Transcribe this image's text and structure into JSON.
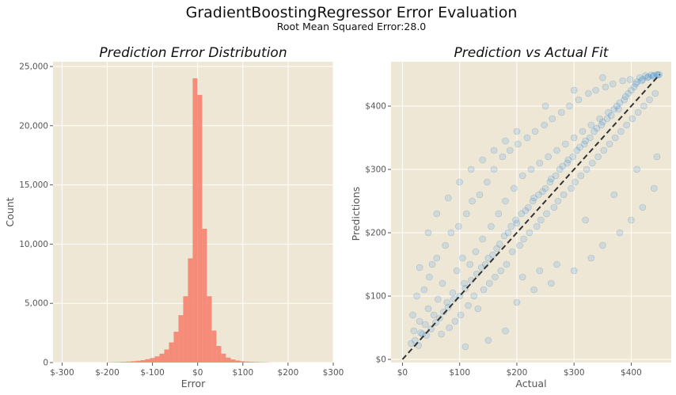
{
  "figure": {
    "title": "GradientBoostingRegressor Error Evaluation",
    "subtitle": "Root Mean Squared Error:28.0"
  },
  "colors": {
    "background": "#EFE7D5",
    "grid": "#FFFFFF",
    "histogram": "#F4826F",
    "scatter": "#2A86D8",
    "diagonal": "#333333"
  },
  "chart_data": [
    {
      "type": "bar",
      "title": "Prediction Error Distribution",
      "xlabel": "Error",
      "ylabel": "Count",
      "xlim": [
        -320,
        300
      ],
      "ylim": [
        0,
        25400
      ],
      "grid": true,
      "xticks": [
        -300,
        -200,
        -100,
        0,
        100,
        200,
        300
      ],
      "xtick_labels": [
        "$-300",
        "$-200",
        "$-100",
        "$0",
        "$100",
        "$200",
        "$300"
      ],
      "yticks": [
        0,
        5000,
        10000,
        15000,
        20000,
        25000
      ],
      "ytick_labels": [
        "0",
        "5,000",
        "10,000",
        "15,000",
        "20,000",
        "25,000"
      ],
      "bin_width": 10.5,
      "bin_starts": [
        -200,
        -189.5,
        -179,
        -168.5,
        -158,
        -147.5,
        -137,
        -126.5,
        -116,
        -105.5,
        -95,
        -84.5,
        -74,
        -63.5,
        -53,
        -42.5,
        -32,
        -21.5,
        -11,
        -0.5,
        10,
        20.5,
        31,
        41.5,
        52,
        62.5,
        73,
        83.5,
        94,
        104.5,
        115,
        125.5,
        136,
        146.5
      ],
      "values": [
        20,
        30,
        40,
        60,
        80,
        110,
        150,
        200,
        280,
        380,
        520,
        750,
        1100,
        1700,
        2600,
        4000,
        5600,
        8800,
        24000,
        22600,
        11300,
        5600,
        2700,
        1400,
        750,
        420,
        260,
        170,
        110,
        80,
        60,
        40,
        30,
        20
      ]
    },
    {
      "type": "scatter",
      "title": "Prediction vs Actual Fit",
      "xlabel": "Actual",
      "ylabel": "Predictions",
      "xlim": [
        -20,
        470
      ],
      "ylim": [
        -5,
        470
      ],
      "grid": true,
      "xticks": [
        0,
        100,
        200,
        300,
        400
      ],
      "xtick_labels": [
        "$0",
        "$100",
        "$200",
        "$300",
        "$400"
      ],
      "yticks": [
        0,
        100,
        200,
        300,
        400
      ],
      "ytick_labels": [
        "$0",
        "$100",
        "$200",
        "$300",
        "$400"
      ],
      "reference_line": {
        "style": "dashed",
        "x": [
          0,
          450
        ],
        "y": [
          0,
          450
        ]
      },
      "point_alpha": 0.15,
      "points": [
        [
          15,
          25
        ],
        [
          18,
          70
        ],
        [
          20,
          45
        ],
        [
          22,
          30
        ],
        [
          25,
          100
        ],
        [
          28,
          22
        ],
        [
          30,
          60
        ],
        [
          32,
          42
        ],
        [
          35,
          40
        ],
        [
          38,
          110
        ],
        [
          40,
          55
        ],
        [
          42,
          38
        ],
        [
          45,
          80
        ],
        [
          47,
          130
        ],
        [
          50,
          48
        ],
        [
          52,
          150
        ],
        [
          55,
          70
        ],
        [
          58,
          58
        ],
        [
          60,
          160
        ],
        [
          62,
          95
        ],
        [
          65,
          65
        ],
        [
          68,
          40
        ],
        [
          70,
          120
        ],
        [
          72,
          75
        ],
        [
          75,
          180
        ],
        [
          78,
          90
        ],
        [
          80,
          82
        ],
        [
          82,
          50
        ],
        [
          85,
          200
        ],
        [
          88,
          105
        ],
        [
          90,
          95
        ],
        [
          92,
          60
        ],
        [
          95,
          140
        ],
        [
          98,
          210
        ],
        [
          100,
          100
        ],
        [
          102,
          70
        ],
        [
          105,
          160
        ],
        [
          108,
          120
        ],
        [
          110,
          112
        ],
        [
          112,
          230
        ],
        [
          115,
          85
        ],
        [
          118,
          150
        ],
        [
          120,
          125
        ],
        [
          122,
          250
        ],
        [
          125,
          100
        ],
        [
          128,
          170
        ],
        [
          130,
          135
        ],
        [
          132,
          80
        ],
        [
          135,
          260
        ],
        [
          138,
          145
        ],
        [
          140,
          190
        ],
        [
          142,
          110
        ],
        [
          145,
          150
        ],
        [
          148,
          280
        ],
        [
          150,
          160
        ],
        [
          152,
          120
        ],
        [
          155,
          210
        ],
        [
          158,
          165
        ],
        [
          160,
          300
        ],
        [
          162,
          130
        ],
        [
          165,
          175
        ],
        [
          168,
          230
        ],
        [
          170,
          182
        ],
        [
          172,
          140
        ],
        [
          175,
          320
        ],
        [
          178,
          195
        ],
        [
          180,
          250
        ],
        [
          182,
          150
        ],
        [
          185,
          200
        ],
        [
          188,
          330
        ],
        [
          190,
          210
        ],
        [
          192,
          170
        ],
        [
          195,
          270
        ],
        [
          198,
          220
        ],
        [
          200,
          215
        ],
        [
          202,
          340
        ],
        [
          205,
          180
        ],
        [
          208,
          230
        ],
        [
          210,
          290
        ],
        [
          212,
          190
        ],
        [
          215,
          235
        ],
        [
          218,
          350
        ],
        [
          220,
          240
        ],
        [
          222,
          200
        ],
        [
          225,
          300
        ],
        [
          228,
          250
        ],
        [
          230,
          255
        ],
        [
          232,
          360
        ],
        [
          235,
          210
        ],
        [
          238,
          260
        ],
        [
          240,
          310
        ],
        [
          242,
          220
        ],
        [
          245,
          265
        ],
        [
          248,
          370
        ],
        [
          250,
          270
        ],
        [
          252,
          230
        ],
        [
          255,
          320
        ],
        [
          258,
          280
        ],
        [
          260,
          285
        ],
        [
          262,
          380
        ],
        [
          265,
          240
        ],
        [
          268,
          290
        ],
        [
          270,
          330
        ],
        [
          272,
          250
        ],
        [
          275,
          300
        ],
        [
          278,
          390
        ],
        [
          280,
          305
        ],
        [
          282,
          260
        ],
        [
          285,
          340
        ],
        [
          288,
          310
        ],
        [
          290,
          315
        ],
        [
          292,
          400
        ],
        [
          295,
          270
        ],
        [
          298,
          320
        ],
        [
          300,
          350
        ],
        [
          302,
          280
        ],
        [
          305,
          330
        ],
        [
          308,
          410
        ],
        [
          310,
          335
        ],
        [
          312,
          290
        ],
        [
          315,
          360
        ],
        [
          318,
          340
        ],
        [
          320,
          345
        ],
        [
          322,
          300
        ],
        [
          325,
          420
        ],
        [
          328,
          350
        ],
        [
          330,
          370
        ],
        [
          332,
          310
        ],
        [
          335,
          360
        ],
        [
          338,
          425
        ],
        [
          340,
          365
        ],
        [
          342,
          320
        ],
        [
          345,
          380
        ],
        [
          348,
          370
        ],
        [
          350,
          375
        ],
        [
          352,
          330
        ],
        [
          355,
          430
        ],
        [
          358,
          380
        ],
        [
          360,
          390
        ],
        [
          362,
          340
        ],
        [
          365,
          385
        ],
        [
          368,
          435
        ],
        [
          370,
          395
        ],
        [
          372,
          350
        ],
        [
          375,
          400
        ],
        [
          378,
          395
        ],
        [
          380,
          405
        ],
        [
          382,
          360
        ],
        [
          385,
          440
        ],
        [
          388,
          410
        ],
        [
          390,
          415
        ],
        [
          392,
          370
        ],
        [
          395,
          420
        ],
        [
          398,
          442
        ],
        [
          400,
          425
        ],
        [
          402,
          380
        ],
        [
          405,
          430
        ],
        [
          408,
          435
        ],
        [
          410,
          438
        ],
        [
          412,
          390
        ],
        [
          415,
          445
        ],
        [
          418,
          440
        ],
        [
          420,
          442
        ],
        [
          422,
          400
        ],
        [
          425,
          448
        ],
        [
          428,
          445
        ],
        [
          430,
          446
        ],
        [
          432,
          410
        ],
        [
          435,
          449
        ],
        [
          438,
          447
        ],
        [
          440,
          448
        ],
        [
          442,
          420
        ],
        [
          445,
          450
        ],
        [
          447,
          449
        ],
        [
          449,
          450
        ],
        [
          30,
          145
        ],
        [
          45,
          200
        ],
        [
          60,
          230
        ],
        [
          80,
          255
        ],
        [
          100,
          280
        ],
        [
          120,
          300
        ],
        [
          140,
          315
        ],
        [
          160,
          330
        ],
        [
          180,
          345
        ],
        [
          200,
          360
        ],
        [
          250,
          400
        ],
        [
          300,
          425
        ],
        [
          350,
          445
        ],
        [
          110,
          20
        ],
        [
          150,
          30
        ],
        [
          180,
          45
        ],
        [
          200,
          90
        ],
        [
          230,
          110
        ],
        [
          260,
          120
        ],
        [
          300,
          140
        ],
        [
          330,
          160
        ],
        [
          350,
          180
        ],
        [
          380,
          200
        ],
        [
          400,
          220
        ],
        [
          420,
          240
        ],
        [
          440,
          270
        ],
        [
          270,
          150
        ],
        [
          320,
          220
        ],
        [
          370,
          260
        ],
        [
          410,
          300
        ],
        [
          445,
          320
        ],
        [
          240,
          140
        ],
        [
          210,
          130
        ]
      ]
    }
  ]
}
